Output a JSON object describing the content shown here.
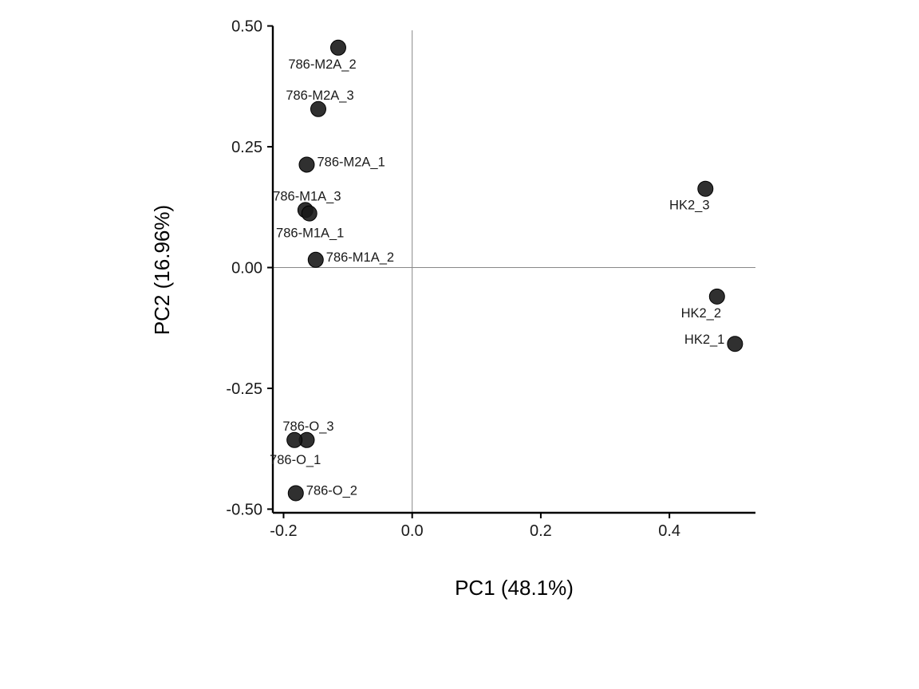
{
  "chart_data": {
    "type": "scatter",
    "xlabel": "PC1 (48.1%)",
    "ylabel": "PC2 (16.96%)",
    "xlim": [
      -0.2167,
      0.5338
    ],
    "ylim": [
      -0.5075,
      0.5075
    ],
    "x_ticks": [
      {
        "value": -0.2,
        "label": "-0.2"
      },
      {
        "value": 0.0,
        "label": "0.0"
      },
      {
        "value": 0.2,
        "label": "0.2"
      },
      {
        "value": 0.4,
        "label": "0.4"
      }
    ],
    "y_ticks": [
      {
        "value": 0.5,
        "label": "0.50"
      },
      {
        "value": 0.25,
        "label": "0.25"
      },
      {
        "value": 0.0,
        "label": "0.00"
      },
      {
        "value": -0.25,
        "label": "-0.25"
      },
      {
        "value": -0.5,
        "label": "-0.50"
      }
    ],
    "reference_lines": {
      "x": 0.0,
      "y": 0.0
    },
    "point_color": "#1a1a1a",
    "points": [
      {
        "label": "786-M2A_2",
        "x": -0.115,
        "y": 0.455,
        "label_pos": "below-left"
      },
      {
        "label": "786-M2A_3",
        "x": -0.146,
        "y": 0.328,
        "label_pos": "above"
      },
      {
        "label": "786-M2A_1",
        "x": -0.164,
        "y": 0.213,
        "label_pos": "right"
      },
      {
        "label": "786-M1A_3",
        "x": -0.166,
        "y": 0.119,
        "label_pos": "above"
      },
      {
        "label": "786-M1A_1",
        "x": -0.16,
        "y": 0.112,
        "label_pos": "below"
      },
      {
        "label": "786-M1A_2",
        "x": -0.15,
        "y": 0.016,
        "label_pos": "right"
      },
      {
        "label": "HK2_3",
        "x": 0.456,
        "y": 0.163,
        "label_pos": "below-left"
      },
      {
        "label": "HK2_2",
        "x": 0.474,
        "y": -0.06,
        "label_pos": "below-left"
      },
      {
        "label": "HK2_1",
        "x": 0.502,
        "y": -0.158,
        "label_pos": "left"
      },
      {
        "label": "786-O_3",
        "x": -0.164,
        "y": -0.357,
        "label_pos": "above"
      },
      {
        "label": "786-O_1",
        "x": -0.183,
        "y": -0.357,
        "label_pos": "below"
      },
      {
        "label": "786-O_2",
        "x": -0.181,
        "y": -0.467,
        "label_pos": "right"
      }
    ]
  }
}
